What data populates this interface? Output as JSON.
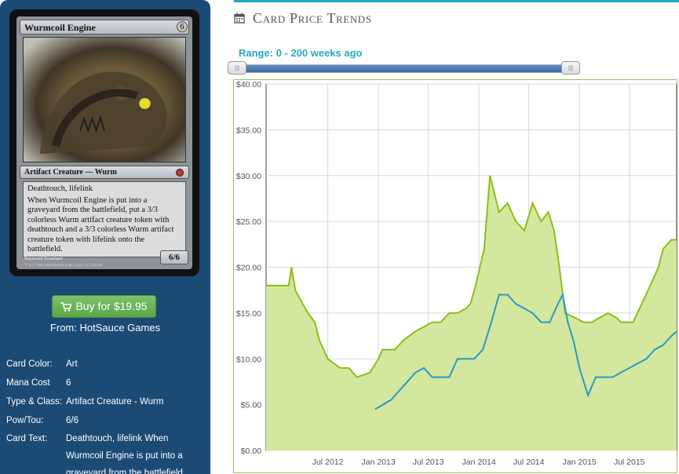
{
  "card": {
    "name": "Wurmcoil Engine",
    "cost": "6",
    "type_line": "Artifact Creature — Wurm",
    "text_keywords": "Deathtouch, lifelink",
    "text_ability": "When Wurmcoil Engine is put into a graveyard from the battlefield, put a 3/3 colorless Wurm artifact creature token with deathtouch and a 3/3 colorless Wurm artifact creature token with lifelink onto the battlefield.",
    "artist": "Raymond Swanland",
    "copyright": "™ & © 1993–2010 Wizards of the Coast LLC 223/249",
    "power_toughness": "6/6"
  },
  "buy": {
    "label": "Buy for $19.95",
    "icon": "shopping-cart-icon",
    "color": "#6bb85a"
  },
  "seller": "From: HotSauce Games",
  "details": [
    {
      "label": "Card Color:",
      "value": "Art"
    },
    {
      "label": "Mana Cost",
      "value": "6"
    },
    {
      "label": "Type & Class:",
      "value": "Artifact Creature - Wurm"
    },
    {
      "label": "Pow/Tou:",
      "value": "6/6"
    },
    {
      "label": "Card Text:",
      "value": "Deathtouch, lifelink When Wurmcoil Engine is put into a graveyard from the battlefield"
    }
  ],
  "section": {
    "title": "Card Price Trends",
    "icon": "calendar-icon",
    "accent": "#2aa7c0"
  },
  "range": {
    "label": "Range: 0 - 200 weeks ago",
    "min": 0,
    "max": 200
  },
  "chart_data": {
    "type": "area",
    "title": "",
    "xlabel": "",
    "ylabel": "",
    "ylim": [
      0,
      40
    ],
    "yticks": [
      0,
      5,
      10,
      15,
      20,
      25,
      30,
      35,
      40
    ],
    "ytick_labels": [
      "$0.00",
      "$5.00",
      "$10.00",
      "$15.00",
      "$20.00",
      "$25.00",
      "$30.00",
      "$35.00",
      "$40.00"
    ],
    "xlim": [
      "2011-11-20",
      "2015-12-20"
    ],
    "xticks": [
      "2012-07-01",
      "2013-01-01",
      "2013-07-01",
      "2014-01-01",
      "2014-07-01",
      "2015-01-01",
      "2015-07-01"
    ],
    "xtick_labels": [
      "Jul 2012",
      "Jan 2013",
      "Jul 2013",
      "Jan 2014",
      "Jul 2014",
      "Jan 2015",
      "Jul 2015"
    ],
    "grid": true,
    "series": [
      {
        "color": "#8bbf1a",
        "fill": "#d4e79e",
        "x": [
          "2011-11-20",
          "2012-02-10",
          "2012-02-20",
          "2012-03-05",
          "2012-04-01",
          "2012-04-20",
          "2012-05-15",
          "2012-06-01",
          "2012-07-01",
          "2012-08-15",
          "2012-09-15",
          "2012-10-15",
          "2012-12-01",
          "2013-01-01",
          "2013-01-15",
          "2013-03-01",
          "2013-04-01",
          "2013-05-15",
          "2013-06-15",
          "2013-07-15",
          "2013-08-15",
          "2013-09-15",
          "2013-10-15",
          "2013-11-15",
          "2013-12-01",
          "2013-12-20",
          "2014-01-20",
          "2014-02-10",
          "2014-03-15",
          "2014-04-15",
          "2014-05-15",
          "2014-06-15",
          "2014-07-15",
          "2014-08-15",
          "2014-09-10",
          "2014-10-01",
          "2014-10-20",
          "2014-11-10",
          "2014-12-15",
          "2015-01-15",
          "2015-02-15",
          "2015-03-15",
          "2015-04-15",
          "2015-05-15",
          "2015-06-01",
          "2015-07-15",
          "2015-08-15",
          "2015-09-15",
          "2015-10-15",
          "2015-11-01",
          "2015-12-01",
          "2015-12-20"
        ],
        "y": [
          18,
          18,
          20,
          17.5,
          16,
          15,
          14,
          12,
          10,
          9,
          9,
          8,
          8.5,
          10,
          11,
          11,
          12,
          13,
          13.5,
          14,
          14,
          15,
          15,
          15.5,
          16,
          18,
          22,
          30,
          26,
          27,
          25,
          24,
          27,
          25,
          26,
          24,
          20,
          15,
          14.5,
          14,
          14,
          14.5,
          15,
          14.5,
          14,
          14,
          16,
          18,
          20,
          22,
          23,
          23
        ]
      },
      {
        "color": "#2a9bc2",
        "x": [
          "2012-12-20",
          "2013-02-15",
          "2013-04-01",
          "2013-05-15",
          "2013-06-15",
          "2013-07-15",
          "2013-09-15",
          "2013-10-15",
          "2013-11-15",
          "2013-12-15",
          "2014-01-15",
          "2014-02-15",
          "2014-03-15",
          "2014-04-15",
          "2014-05-15",
          "2014-06-15",
          "2014-07-15",
          "2014-08-15",
          "2014-09-15",
          "2014-10-15",
          "2014-11-01",
          "2014-11-20",
          "2014-12-10",
          "2015-01-01",
          "2015-02-01",
          "2015-03-01",
          "2015-04-01",
          "2015-05-01",
          "2015-06-01",
          "2015-07-01",
          "2015-08-01",
          "2015-09-01",
          "2015-10-01",
          "2015-11-01",
          "2015-12-01",
          "2015-12-20"
        ],
        "y": [
          4.5,
          5.5,
          7,
          8.5,
          9,
          8,
          8,
          10,
          10,
          10,
          11,
          14,
          17,
          17,
          16,
          15.5,
          15,
          14,
          14,
          16,
          17,
          14,
          12,
          9,
          6,
          8,
          8,
          8,
          8.5,
          9,
          9.5,
          10,
          11,
          11.5,
          12.5,
          13
        ]
      }
    ]
  }
}
